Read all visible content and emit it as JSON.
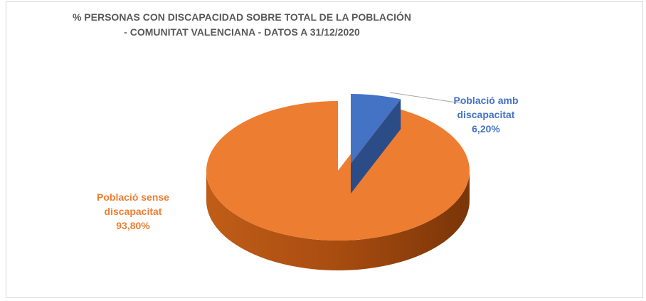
{
  "chart_data": {
    "type": "pie",
    "title_line1": "% PERSONAS CON DISCAPACIDAD SOBRE TOTAL DE LA POBLACIÓN",
    "title_line2": "- COMUNITAT VALENCIANA - DATOS A 31/12/2020",
    "slices": [
      {
        "label_line1": "Població amb",
        "label_line2": "discapacitat",
        "value_text": "6,20%",
        "value": 6.2,
        "color": "#4472c4",
        "exploded": true
      },
      {
        "label_line1": "Població sense",
        "label_line2": "discapacitat",
        "value_text": "93,80%",
        "value": 93.8,
        "color": "#ed7d31",
        "exploded": false
      }
    ],
    "style": "3d-exploded-pie",
    "legend": "none"
  }
}
